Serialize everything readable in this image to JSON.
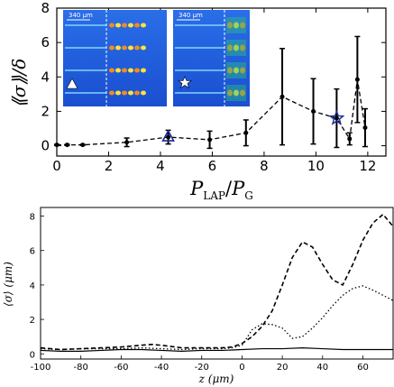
{
  "chart_data": [
    {
      "type": "line",
      "ylabel": "⟪σ⟫/δ",
      "xlabel_main": "P",
      "xlabel_sub_num": "LAP",
      "xlabel_den": "P",
      "xlabel_sub_den": "G",
      "xlim": [
        0,
        12.7
      ],
      "ylim": [
        -0.6,
        8
      ],
      "xticks": [
        "0",
        "2",
        "4",
        "6",
        "8",
        "10",
        "12"
      ],
      "yticks": [
        "0",
        "2",
        "4",
        "6",
        "8"
      ],
      "series": [
        {
          "x": [
            0,
            0.4,
            1.0,
            2.7,
            4.3,
            5.9,
            7.3,
            8.7,
            9.9,
            10.8,
            11.3,
            11.6,
            11.9
          ],
          "y": [
            0.05,
            0.05,
            0.05,
            0.2,
            0.5,
            0.35,
            0.75,
            2.85,
            2.0,
            1.6,
            0.4,
            3.85,
            1.05
          ],
          "err": [
            0.03,
            0.03,
            0.03,
            0.25,
            0.4,
            0.5,
            0.75,
            2.8,
            1.9,
            1.7,
            0.35,
            2.5,
            1.1
          ]
        }
      ],
      "markers": [
        {
          "x": 4.3,
          "y": 0.5,
          "shape": "triangle",
          "color": "#1a2a9a"
        },
        {
          "x": 10.8,
          "y": 1.6,
          "shape": "star",
          "color": "#1a2a9a"
        }
      ],
      "insets": [
        {
          "scale_label": "340 μm",
          "marker": "triangle"
        },
        {
          "scale_label": "340 μm",
          "marker": "star"
        }
      ]
    },
    {
      "type": "line",
      "ylabel": "⟨σ⟩ (μm)",
      "xlabel": "z (μm)",
      "xlim": [
        -100,
        75
      ],
      "ylim": [
        -0.3,
        8.5
      ],
      "xticks": [
        "-100",
        "-80",
        "-60",
        "-40",
        "-20",
        "0",
        "20",
        "40",
        "60"
      ],
      "yticks": [
        "0",
        "2",
        "4",
        "6",
        "8"
      ],
      "series": [
        {
          "style": "dashed",
          "x": [
            -100,
            -90,
            -80,
            -70,
            -60,
            -50,
            -45,
            -40,
            -30,
            -20,
            -10,
            -5,
            0,
            5,
            10,
            15,
            20,
            25,
            30,
            35,
            40,
            45,
            50,
            55,
            60,
            65,
            70,
            75
          ],
          "y": [
            0.35,
            0.25,
            0.3,
            0.35,
            0.4,
            0.5,
            0.55,
            0.5,
            0.35,
            0.35,
            0.35,
            0.4,
            0.6,
            1.0,
            1.6,
            2.5,
            4.0,
            5.6,
            6.5,
            6.2,
            5.2,
            4.3,
            4.0,
            5.2,
            6.6,
            7.6,
            8.1,
            7.4
          ]
        },
        {
          "style": "dotted",
          "x": [
            -100,
            -90,
            -80,
            -70,
            -60,
            -50,
            -40,
            -30,
            -20,
            -10,
            -5,
            0,
            5,
            10,
            15,
            20,
            25,
            30,
            35,
            40,
            45,
            50,
            55,
            60,
            65,
            70,
            75
          ],
          "y": [
            0.3,
            0.25,
            0.3,
            0.3,
            0.3,
            0.35,
            0.3,
            0.25,
            0.3,
            0.3,
            0.35,
            0.5,
            1.4,
            1.75,
            1.7,
            1.5,
            0.9,
            1.0,
            1.5,
            2.1,
            2.8,
            3.4,
            3.8,
            3.95,
            3.7,
            3.4,
            3.1
          ]
        },
        {
          "style": "solid",
          "x": [
            -100,
            -90,
            -80,
            -70,
            -60,
            -50,
            -40,
            -30,
            -20,
            -10,
            0,
            10,
            20,
            30,
            40,
            50,
            60,
            70,
            75
          ],
          "y": [
            0.2,
            0.15,
            0.15,
            0.2,
            0.25,
            0.25,
            0.2,
            0.15,
            0.2,
            0.2,
            0.25,
            0.3,
            0.3,
            0.35,
            0.3,
            0.25,
            0.25,
            0.25,
            0.25
          ]
        }
      ]
    }
  ]
}
